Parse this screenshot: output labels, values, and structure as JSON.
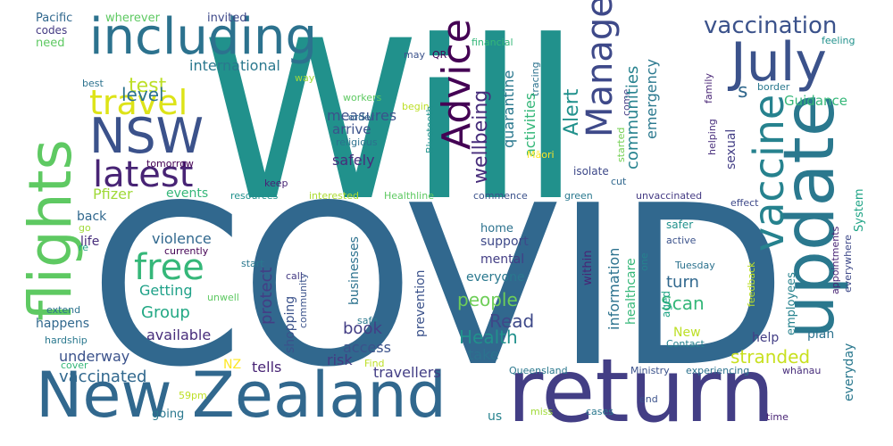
{
  "words": [
    {
      "text": "Will",
      "color": "#21918c"
    },
    {
      "text": "COVID",
      "color": "#31688e"
    },
    {
      "text": "return",
      "color": "#433e85"
    },
    {
      "text": "New Zealand",
      "color": "#31688e"
    },
    {
      "text": "update",
      "color": "#2a788e"
    },
    {
      "text": "flights",
      "color": "#5ec962"
    },
    {
      "text": "including",
      "color": "#2c728e"
    },
    {
      "text": "July",
      "color": "#3b528b"
    },
    {
      "text": "vaccine",
      "color": "#26828e"
    },
    {
      "text": "NSW",
      "color": "#3b528b"
    },
    {
      "text": "travel",
      "color": "#dde318"
    },
    {
      "text": "latest",
      "color": "#482475"
    },
    {
      "text": "free",
      "color": "#35b779"
    },
    {
      "text": "Advice",
      "color": "#440154"
    },
    {
      "text": "Managed",
      "color": "#3e4989"
    },
    {
      "text": "vaccination",
      "color": "#3b528b"
    },
    {
      "text": "test",
      "color": "#bddf26"
    },
    {
      "text": "level",
      "color": "#2c728e"
    },
    {
      "text": "s",
      "color": "#31688e"
    },
    {
      "text": "international",
      "color": "#2a788e"
    },
    {
      "text": "measures",
      "color": "#3b528b"
    },
    {
      "text": "Pacific",
      "color": "#31688e"
    },
    {
      "text": "wherever",
      "color": "#5ec962"
    },
    {
      "text": "invited",
      "color": "#3e4989"
    },
    {
      "text": "codes",
      "color": "#443a83"
    },
    {
      "text": "need",
      "color": "#5ec962"
    },
    {
      "text": "best",
      "color": "#2c728e"
    },
    {
      "text": "may",
      "color": "#3b528b"
    },
    {
      "text": "QR",
      "color": "#440154"
    },
    {
      "text": "way",
      "color": "#a0da39"
    },
    {
      "text": "financial",
      "color": "#35b779"
    },
    {
      "text": "feeling",
      "color": "#21918c"
    },
    {
      "text": "tracing",
      "color": "#2c728e"
    },
    {
      "text": "come",
      "color": "#433e85"
    },
    {
      "text": "family",
      "color": "#482475"
    },
    {
      "text": "border",
      "color": "#2a788e"
    },
    {
      "text": "helping",
      "color": "#472d7b"
    },
    {
      "text": "Guidance",
      "color": "#35b779"
    },
    {
      "text": "wellbeing",
      "color": "#472d7b"
    },
    {
      "text": "communities",
      "color": "#26828e"
    },
    {
      "text": "emergency",
      "color": "#2a788e"
    },
    {
      "text": "Alert",
      "color": "#21918c"
    },
    {
      "text": "quarantine",
      "color": "#2a788e"
    },
    {
      "text": "activities",
      "color": "#35b779"
    },
    {
      "text": "workers",
      "color": "#5ec962"
    },
    {
      "text": "order",
      "color": "#31688e"
    },
    {
      "text": "arrive",
      "color": "#3b528b"
    },
    {
      "text": "religious",
      "color": "#2c728e"
    },
    {
      "text": "begin",
      "color": "#bddf26"
    },
    {
      "text": "Bluetooth",
      "color": "#21918c"
    },
    {
      "text": "started",
      "color": "#75d054"
    },
    {
      "text": "safely",
      "color": "#472d7b"
    },
    {
      "text": "sexual",
      "color": "#433e85"
    },
    {
      "text": "Māori",
      "color": "#fde725"
    },
    {
      "text": "isolate",
      "color": "#3e4989"
    },
    {
      "text": "cut",
      "color": "#31688e"
    },
    {
      "text": "green",
      "color": "#2a788e"
    },
    {
      "text": "tomorrow",
      "color": "#440154"
    },
    {
      "text": "keep",
      "color": "#482475"
    },
    {
      "text": "Pfizer",
      "color": "#a0da39"
    },
    {
      "text": "events",
      "color": "#35b779"
    },
    {
      "text": "resources",
      "color": "#21918c"
    },
    {
      "text": "interested",
      "color": "#addc30"
    },
    {
      "text": "Healthline",
      "color": "#5ec962"
    },
    {
      "text": "commence",
      "color": "#3b528b"
    },
    {
      "text": "unvaccinated",
      "color": "#443a83"
    },
    {
      "text": "effect",
      "color": "#3e4989"
    },
    {
      "text": "System",
      "color": "#20a486"
    },
    {
      "text": "back",
      "color": "#31688e"
    },
    {
      "text": "go",
      "color": "#a0da39"
    },
    {
      "text": "life",
      "color": "#472d7b"
    },
    {
      "text": "re",
      "color": "#1fa188"
    },
    {
      "text": "violence",
      "color": "#31688e"
    },
    {
      "text": "currently",
      "color": "#440154"
    },
    {
      "text": "Getting",
      "color": "#1fa188"
    },
    {
      "text": "Group",
      "color": "#22a884"
    },
    {
      "text": "protect",
      "color": "#433e85"
    },
    {
      "text": "home",
      "color": "#2c728e"
    },
    {
      "text": "support",
      "color": "#3e4989"
    },
    {
      "text": "mental",
      "color": "#433e85"
    },
    {
      "text": "prevention",
      "color": "#3b528b"
    },
    {
      "text": "people",
      "color": "#6ece58"
    },
    {
      "text": "everyone",
      "color": "#2a788e"
    },
    {
      "text": "information",
      "color": "#2c728e"
    },
    {
      "text": "healthcare",
      "color": "#35b779"
    },
    {
      "text": "within",
      "color": "#482475"
    },
    {
      "text": "one",
      "color": "#26828e"
    },
    {
      "text": "turn",
      "color": "#31688e"
    },
    {
      "text": "Scan",
      "color": "#35b779"
    },
    {
      "text": "aged",
      "color": "#20a486"
    },
    {
      "text": "employees",
      "color": "#26828e"
    },
    {
      "text": "safer",
      "color": "#21918c"
    },
    {
      "text": "active",
      "color": "#3b528b"
    },
    {
      "text": "appointments",
      "color": "#482475"
    },
    {
      "text": "everywhere",
      "color": "#3e4989"
    },
    {
      "text": "Tuesday",
      "color": "#2c728e"
    },
    {
      "text": "feedback",
      "color": "#bddf26"
    },
    {
      "text": "start",
      "color": "#2a788e"
    },
    {
      "text": "call",
      "color": "#443a83"
    },
    {
      "text": "community",
      "color": "#3b528b"
    },
    {
      "text": "shopping",
      "color": "#3b528b"
    },
    {
      "text": "businesses",
      "color": "#2c728e"
    },
    {
      "text": "unwell",
      "color": "#5ec962"
    },
    {
      "text": "safe",
      "color": "#2a788e"
    },
    {
      "text": "extend",
      "color": "#2c728e"
    },
    {
      "text": "happens",
      "color": "#31688e"
    },
    {
      "text": "available",
      "color": "#472d7b"
    },
    {
      "text": "book",
      "color": "#433e85"
    },
    {
      "text": "Read",
      "color": "#3e4989"
    },
    {
      "text": "Health",
      "color": "#21918c"
    },
    {
      "text": "access",
      "color": "#3b528b"
    },
    {
      "text": "take",
      "color": "#2c728e"
    },
    {
      "text": "risk",
      "color": "#443a83"
    },
    {
      "text": "Contact",
      "color": "#26828e"
    },
    {
      "text": "New",
      "color": "#bddf26"
    },
    {
      "text": "plan",
      "color": "#2c728e"
    },
    {
      "text": "help",
      "color": "#433e85"
    },
    {
      "text": "stranded",
      "color": "#c8e020"
    },
    {
      "text": "everyday",
      "color": "#2a788e"
    },
    {
      "text": "hardship",
      "color": "#2a788e"
    },
    {
      "text": "underway",
      "color": "#3b528b"
    },
    {
      "text": "NZ",
      "color": "#fde725"
    },
    {
      "text": "tells",
      "color": "#482475"
    },
    {
      "text": "travellers",
      "color": "#433e85"
    },
    {
      "text": "Find",
      "color": "#bddf26"
    },
    {
      "text": "cover",
      "color": "#35b779"
    },
    {
      "text": "vaccinated",
      "color": "#31688e"
    },
    {
      "text": "Queensland",
      "color": "#2a788e"
    },
    {
      "text": "Ministry",
      "color": "#3b528b"
    },
    {
      "text": "experiencing",
      "color": "#2c728e"
    },
    {
      "text": "whānau",
      "color": "#472d7b"
    },
    {
      "text": "59pm",
      "color": "#bddf26"
    },
    {
      "text": "going",
      "color": "#2a788e"
    },
    {
      "text": "us",
      "color": "#26828e"
    },
    {
      "text": "miss",
      "color": "#a0da39"
    },
    {
      "text": "cases",
      "color": "#2a788e"
    },
    {
      "text": "end",
      "color": "#3b528b"
    },
    {
      "text": "time",
      "color": "#482475"
    }
  ]
}
